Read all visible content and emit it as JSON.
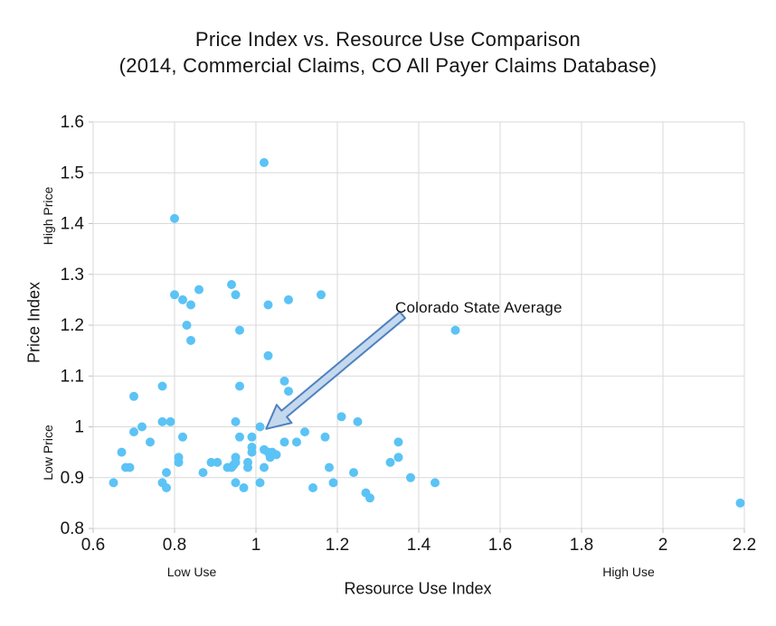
{
  "title": {
    "line1": "Price Index vs. Resource Use Comparison",
    "line2": "(2014, Commercial Claims, CO All Payer Claims Database)"
  },
  "chart_data": {
    "type": "scatter",
    "xlabel": "Resource Use Index",
    "ylabel": "Price Index",
    "xlim": [
      0.6,
      2.2
    ],
    "ylim": [
      0.8,
      1.6
    ],
    "x_tick_values": [
      0.6,
      0.8,
      1.0,
      1.2,
      1.4,
      1.6,
      1.8,
      2.0,
      2.2
    ],
    "x_tick_labels": [
      "0.6",
      "0.8",
      "1",
      "1.2",
      "1.4",
      "1.6",
      "1.8",
      "2",
      "2.2"
    ],
    "y_tick_values": [
      0.8,
      0.9,
      1.0,
      1.1,
      1.2,
      1.3,
      1.4,
      1.5,
      1.6
    ],
    "y_tick_labels": [
      "0.8",
      "0.9",
      "1",
      "1.1",
      "1.2",
      "1.3",
      "1.4",
      "1.5",
      "1.6"
    ],
    "x_region_labels": {
      "low": "Low Use",
      "high": "High Use"
    },
    "y_region_labels": {
      "low": "Low Price",
      "high": "High Price"
    },
    "grid": true,
    "annotation": {
      "text": "Colorado State Average",
      "arrow_tail": [
        1.36,
        1.22
      ],
      "arrow_tip": [
        1.025,
        0.996
      ]
    },
    "colors": {
      "point": "#5BC3F5",
      "grid": "#D9D9D9",
      "tick": "#BFBFBF",
      "arrow_fill": "#C4D8EE",
      "arrow_stroke": "#4F81BD"
    },
    "points": [
      [
        1.02,
        1.52
      ],
      [
        0.8,
        1.41
      ],
      [
        0.94,
        1.28
      ],
      [
        0.86,
        1.27
      ],
      [
        0.8,
        1.26
      ],
      [
        0.95,
        1.26
      ],
      [
        1.16,
        1.26
      ],
      [
        0.82,
        1.25
      ],
      [
        1.08,
        1.25
      ],
      [
        0.84,
        1.24
      ],
      [
        1.03,
        1.24
      ],
      [
        0.83,
        1.2
      ],
      [
        0.96,
        1.19
      ],
      [
        1.49,
        1.19
      ],
      [
        0.84,
        1.17
      ],
      [
        1.03,
        1.14
      ],
      [
        0.77,
        1.08
      ],
      [
        0.96,
        1.08
      ],
      [
        1.07,
        1.09
      ],
      [
        1.08,
        1.07
      ],
      [
        0.7,
        1.06
      ],
      [
        0.77,
        1.01
      ],
      [
        0.79,
        1.01
      ],
      [
        0.72,
        1.0
      ],
      [
        0.95,
        1.01
      ],
      [
        1.01,
        1.0
      ],
      [
        1.21,
        1.02
      ],
      [
        1.25,
        1.01
      ],
      [
        0.7,
        0.99
      ],
      [
        1.12,
        0.99
      ],
      [
        0.82,
        0.98
      ],
      [
        0.96,
        0.98
      ],
      [
        0.99,
        0.98
      ],
      [
        1.17,
        0.98
      ],
      [
        0.74,
        0.97
      ],
      [
        1.07,
        0.97
      ],
      [
        1.1,
        0.97
      ],
      [
        1.35,
        0.97
      ],
      [
        0.99,
        0.96
      ],
      [
        0.67,
        0.95
      ],
      [
        0.99,
        0.95
      ],
      [
        1.02,
        0.955
      ],
      [
        1.03,
        0.95
      ],
      [
        1.04,
        0.95
      ],
      [
        1.035,
        0.94
      ],
      [
        1.05,
        0.945
      ],
      [
        0.95,
        0.94
      ],
      [
        0.81,
        0.94
      ],
      [
        1.35,
        0.94
      ],
      [
        0.95,
        0.93
      ],
      [
        0.98,
        0.93
      ],
      [
        0.81,
        0.93
      ],
      [
        0.89,
        0.93
      ],
      [
        0.905,
        0.93
      ],
      [
        1.33,
        0.93
      ],
      [
        0.68,
        0.92
      ],
      [
        0.69,
        0.92
      ],
      [
        0.93,
        0.92
      ],
      [
        0.94,
        0.92
      ],
      [
        0.945,
        0.925
      ],
      [
        0.98,
        0.92
      ],
      [
        1.02,
        0.92
      ],
      [
        1.18,
        0.92
      ],
      [
        0.78,
        0.91
      ],
      [
        0.87,
        0.91
      ],
      [
        1.24,
        0.91
      ],
      [
        1.38,
        0.9
      ],
      [
        0.77,
        0.89
      ],
      [
        0.65,
        0.89
      ],
      [
        0.95,
        0.89
      ],
      [
        1.01,
        0.89
      ],
      [
        1.19,
        0.89
      ],
      [
        1.44,
        0.89
      ],
      [
        0.78,
        0.88
      ],
      [
        0.97,
        0.88
      ],
      [
        1.14,
        0.88
      ],
      [
        1.27,
        0.87
      ],
      [
        1.28,
        0.86
      ],
      [
        2.19,
        0.85
      ]
    ]
  }
}
